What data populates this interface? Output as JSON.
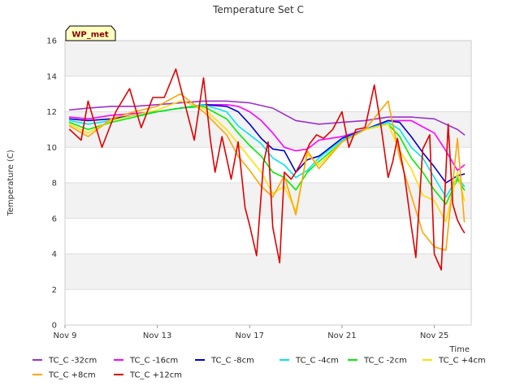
{
  "chart_data": {
    "type": "line",
    "title": "Temperature Set C",
    "xlabel": "Time",
    "ylabel": "Temperature (C)",
    "badge": "WP_met",
    "xlim": [
      0,
      17.6
    ],
    "ylim": [
      0,
      16
    ],
    "x_unit": "days since Nov 9",
    "x_ticks": [
      {
        "value": 0,
        "label": "Nov 9"
      },
      {
        "value": 4,
        "label": "Nov 13"
      },
      {
        "value": 8,
        "label": "Nov 17"
      },
      {
        "value": 12,
        "label": "Nov 21"
      },
      {
        "value": 16,
        "label": "Nov 25"
      }
    ],
    "y_ticks": [
      0,
      2,
      4,
      6,
      8,
      10,
      12,
      14,
      16
    ],
    "grid": true,
    "legend_position": "bottom",
    "series": [
      {
        "name": "TC_C -32cm",
        "color": "#9932cc",
        "x": [
          0.2,
          1,
          2,
          3,
          4,
          5,
          6,
          7,
          8,
          9,
          10,
          11,
          12,
          13,
          14,
          15,
          16,
          17,
          17.3
        ],
        "y": [
          12.1,
          12.2,
          12.3,
          12.3,
          12.4,
          12.5,
          12.6,
          12.6,
          12.5,
          12.2,
          11.5,
          11.3,
          11.4,
          11.5,
          11.7,
          11.7,
          11.6,
          11.0,
          10.7
        ]
      },
      {
        "name": "TC_C -16cm",
        "color": "#ff00ff",
        "x": [
          0.2,
          1,
          2,
          3,
          4,
          5,
          6,
          7,
          7.5,
          8,
          8.5,
          9,
          9.5,
          10,
          10.5,
          11,
          12,
          13,
          14,
          15,
          16,
          16.5,
          17,
          17.3
        ],
        "y": [
          11.7,
          11.6,
          11.8,
          11.9,
          12.0,
          12.2,
          12.4,
          12.4,
          12.3,
          12.0,
          11.5,
          10.8,
          10.0,
          9.8,
          9.9,
          10.4,
          10.6,
          11.0,
          11.5,
          11.5,
          10.8,
          9.8,
          8.7,
          9.0
        ]
      },
      {
        "name": "TC_C -8cm",
        "color": "#0000cd",
        "x": [
          0.2,
          1,
          2,
          3,
          4,
          5,
          6,
          7,
          7.5,
          8,
          8.5,
          9,
          9.5,
          10,
          10.5,
          11,
          12,
          13,
          14,
          14.5,
          15,
          15.5,
          16,
          16.5,
          17,
          17.3
        ],
        "y": [
          11.6,
          11.5,
          11.6,
          11.8,
          12.0,
          12.2,
          12.4,
          12.3,
          12.0,
          11.3,
          10.5,
          9.9,
          9.8,
          8.6,
          9.3,
          9.5,
          10.5,
          11.0,
          11.5,
          11.4,
          10.6,
          9.7,
          8.9,
          8.0,
          8.4,
          8.5
        ]
      },
      {
        "name": "TC_C -4cm",
        "color": "#00e5ee",
        "x": [
          0.2,
          1,
          2,
          3,
          4,
          5,
          6,
          7,
          7.5,
          8,
          8.5,
          9,
          9.5,
          10,
          10.5,
          11,
          12,
          13,
          14,
          14.5,
          15,
          15.5,
          16,
          16.5,
          17,
          17.3
        ],
        "y": [
          11.5,
          11.3,
          11.5,
          11.8,
          12.0,
          12.2,
          12.4,
          12.0,
          11.2,
          10.7,
          10.2,
          9.4,
          9.0,
          8.3,
          8.7,
          9.4,
          10.4,
          11.0,
          11.4,
          11.0,
          10.0,
          9.4,
          8.3,
          7.2,
          8.3,
          7.8
        ]
      },
      {
        "name": "TC_C -2cm",
        "color": "#00ee00",
        "x": [
          0.2,
          1,
          2,
          3,
          4,
          5,
          6,
          7,
          7.5,
          8,
          8.5,
          9,
          9.5,
          10,
          10.5,
          11,
          12,
          13,
          14,
          14.5,
          15,
          15.5,
          16,
          16.5,
          17,
          17.3
        ],
        "y": [
          11.4,
          11.0,
          11.4,
          11.7,
          12.0,
          12.2,
          12.3,
          11.6,
          10.8,
          10.1,
          9.5,
          8.6,
          8.3,
          7.6,
          8.6,
          9.2,
          10.3,
          11.0,
          11.3,
          10.6,
          9.4,
          8.6,
          7.6,
          6.8,
          8.2,
          7.6
        ]
      },
      {
        "name": "TC_C +4cm",
        "color": "#ffe000",
        "x": [
          0.2,
          1,
          2,
          3,
          4,
          5,
          6,
          7,
          7.5,
          8,
          8.5,
          9,
          9.5,
          10,
          10.5,
          11,
          12,
          13,
          14,
          14.5,
          15,
          15.5,
          16,
          16.5,
          17,
          17.3
        ],
        "y": [
          11.3,
          10.8,
          11.5,
          11.8,
          12.1,
          12.6,
          12.2,
          11.0,
          10.2,
          9.4,
          8.6,
          7.4,
          7.8,
          6.4,
          9.6,
          9.0,
          10.3,
          11.0,
          11.3,
          9.8,
          8.8,
          7.3,
          7.0,
          5.8,
          8.6,
          7.0
        ]
      },
      {
        "name": "TC_C +8cm",
        "color": "#ffa500",
        "x": [
          0.2,
          1,
          2,
          3,
          4,
          5,
          6,
          7,
          7.5,
          8,
          8.5,
          9,
          9.5,
          10,
          10.5,
          11,
          12,
          13,
          14,
          14.5,
          15,
          15.5,
          16,
          16.5,
          17,
          17.3
        ],
        "y": [
          11.2,
          10.6,
          11.6,
          12.0,
          12.3,
          13.0,
          12.0,
          10.7,
          9.5,
          8.7,
          7.8,
          7.2,
          8.4,
          6.2,
          9.8,
          8.8,
          10.3,
          11.0,
          12.6,
          9.4,
          7.3,
          5.2,
          4.4,
          4.2,
          10.5,
          5.8
        ]
      },
      {
        "name": "TC_C +12cm",
        "color": "#e00000",
        "x": [
          0.2,
          0.7,
          1,
          1.6,
          2.2,
          2.8,
          3.3,
          3.8,
          4.3,
          4.8,
          5.3,
          5.6,
          6.0,
          6.3,
          6.5,
          6.8,
          7.2,
          7.5,
          7.8,
          8.0,
          8.3,
          8.6,
          8.8,
          9.0,
          9.3,
          9.5,
          9.8,
          10.0,
          10.3,
          10.6,
          10.9,
          11.2,
          11.6,
          12.0,
          12.3,
          12.6,
          13.0,
          13.4,
          13.7,
          14.0,
          14.2,
          14.4,
          14.7,
          15.0,
          15.2,
          15.5,
          15.8,
          16.0,
          16.3,
          16.6,
          16.8,
          17.0,
          17.2,
          17.3
        ],
        "y": [
          11.0,
          10.4,
          12.6,
          10.0,
          12.0,
          13.3,
          11.1,
          12.8,
          12.8,
          14.4,
          11.9,
          10.4,
          13.9,
          10.4,
          8.6,
          10.6,
          8.2,
          10.3,
          6.6,
          5.6,
          3.9,
          9.1,
          10.3,
          5.5,
          3.5,
          8.6,
          8.2,
          8.6,
          9.3,
          10.2,
          10.7,
          10.5,
          11.0,
          12.0,
          10.0,
          11.0,
          11.1,
          13.5,
          11.1,
          8.3,
          9.2,
          10.5,
          8.5,
          5.6,
          3.8,
          9.9,
          10.7,
          4.0,
          3.1,
          11.3,
          6.8,
          5.9,
          5.4,
          5.2
        ]
      }
    ]
  }
}
